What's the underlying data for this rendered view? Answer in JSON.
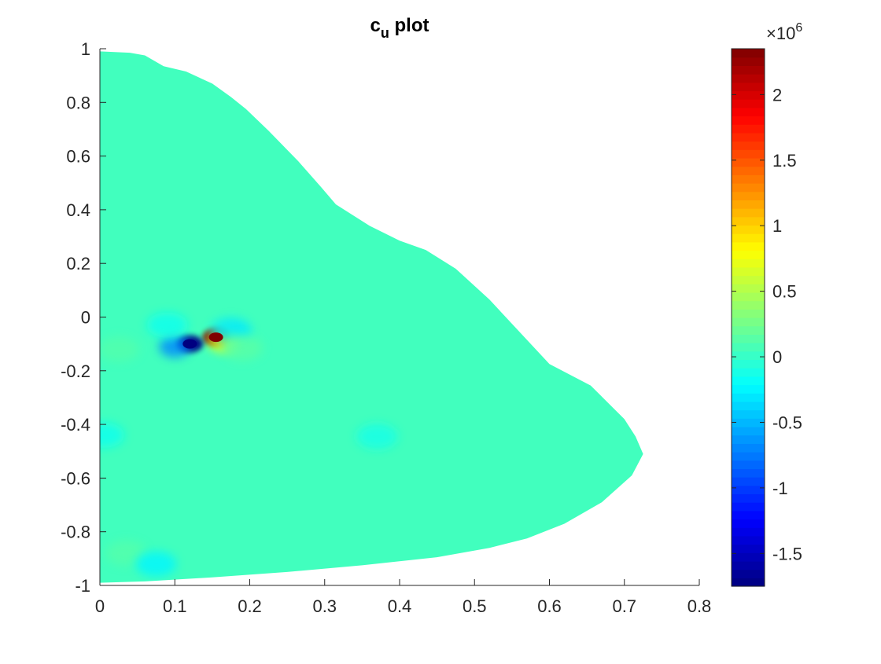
{
  "chart_data": {
    "type": "heatmap",
    "title": {
      "main": "c",
      "subscript": "u",
      "rest": " plot"
    },
    "xlabel": "",
    "ylabel": "",
    "xlim": [
      0,
      0.8
    ],
    "ylim": [
      -1,
      1
    ],
    "x_ticks": [
      0,
      0.1,
      0.2,
      0.3,
      0.4,
      0.5,
      0.6,
      0.7,
      0.8
    ],
    "x_tick_labels": [
      "0",
      "0.1",
      "0.2",
      "0.3",
      "0.4",
      "0.5",
      "0.6",
      "0.7",
      "0.8"
    ],
    "y_ticks": [
      -1,
      -0.8,
      -0.6,
      -0.4,
      -0.2,
      0,
      0.2,
      0.4,
      0.6,
      0.8,
      1
    ],
    "y_tick_labels": [
      "-1",
      "-0.8",
      "-0.6",
      "-0.4",
      "-0.2",
      "0",
      "0.2",
      "0.4",
      "0.6",
      "0.8",
      "1"
    ],
    "grid": false,
    "colormap": "jet",
    "background_color": "#41ffbe",
    "domain_outline": [
      [
        0.0,
        -0.99
      ],
      [
        0.0,
        0.99
      ],
      [
        0.04,
        0.985
      ],
      [
        0.06,
        0.975
      ],
      [
        0.085,
        0.935
      ],
      [
        0.115,
        0.915
      ],
      [
        0.15,
        0.87
      ],
      [
        0.175,
        0.82
      ],
      [
        0.195,
        0.775
      ],
      [
        0.225,
        0.695
      ],
      [
        0.265,
        0.58
      ],
      [
        0.295,
        0.485
      ],
      [
        0.315,
        0.42
      ],
      [
        0.36,
        0.34
      ],
      [
        0.4,
        0.285
      ],
      [
        0.435,
        0.25
      ],
      [
        0.475,
        0.18
      ],
      [
        0.52,
        0.065
      ],
      [
        0.6,
        -0.175
      ],
      [
        0.655,
        -0.255
      ],
      [
        0.7,
        -0.38
      ],
      [
        0.715,
        -0.445
      ],
      [
        0.725,
        -0.51
      ],
      [
        0.71,
        -0.59
      ],
      [
        0.67,
        -0.69
      ],
      [
        0.62,
        -0.77
      ],
      [
        0.57,
        -0.825
      ],
      [
        0.52,
        -0.86
      ],
      [
        0.45,
        -0.895
      ],
      [
        0.35,
        -0.925
      ],
      [
        0.25,
        -0.95
      ],
      [
        0.15,
        -0.97
      ],
      [
        0.06,
        -0.985
      ],
      [
        0.0,
        -0.99
      ]
    ],
    "features": [
      {
        "x": 0.155,
        "y": -0.075,
        "value": 2350000
      },
      {
        "x": 0.165,
        "y": -0.09,
        "value": 800000
      },
      {
        "x": 0.12,
        "y": -0.1,
        "value": -1750000
      },
      {
        "x": 0.1,
        "y": -0.11,
        "value": -700000
      },
      {
        "x": 0.175,
        "y": -0.05,
        "value": -300000
      },
      {
        "x": 0.19,
        "y": -0.115,
        "value": 150000
      },
      {
        "x": 0.09,
        "y": -0.03,
        "value": -150000
      },
      {
        "x": 0.025,
        "y": -0.12,
        "value": 120000
      },
      {
        "x": 0.035,
        "y": -0.88,
        "value": 130000
      },
      {
        "x": 0.075,
        "y": -0.92,
        "value": -250000
      },
      {
        "x": 0.37,
        "y": -0.445,
        "value": -120000
      },
      {
        "x": 0.005,
        "y": -0.44,
        "value": -150000
      }
    ],
    "colorbar": {
      "min": -1750000,
      "max": 2350000,
      "exponent_label": {
        "base": "×10",
        "power": "6"
      },
      "ticks": [
        -1500000,
        -1000000,
        -500000,
        0,
        500000,
        1000000,
        1500000,
        2000000
      ],
      "tick_labels": [
        "-1.5",
        "-1",
        "-0.5",
        "0",
        "0.5",
        "1",
        "1.5",
        "2"
      ],
      "levels": 64
    }
  }
}
